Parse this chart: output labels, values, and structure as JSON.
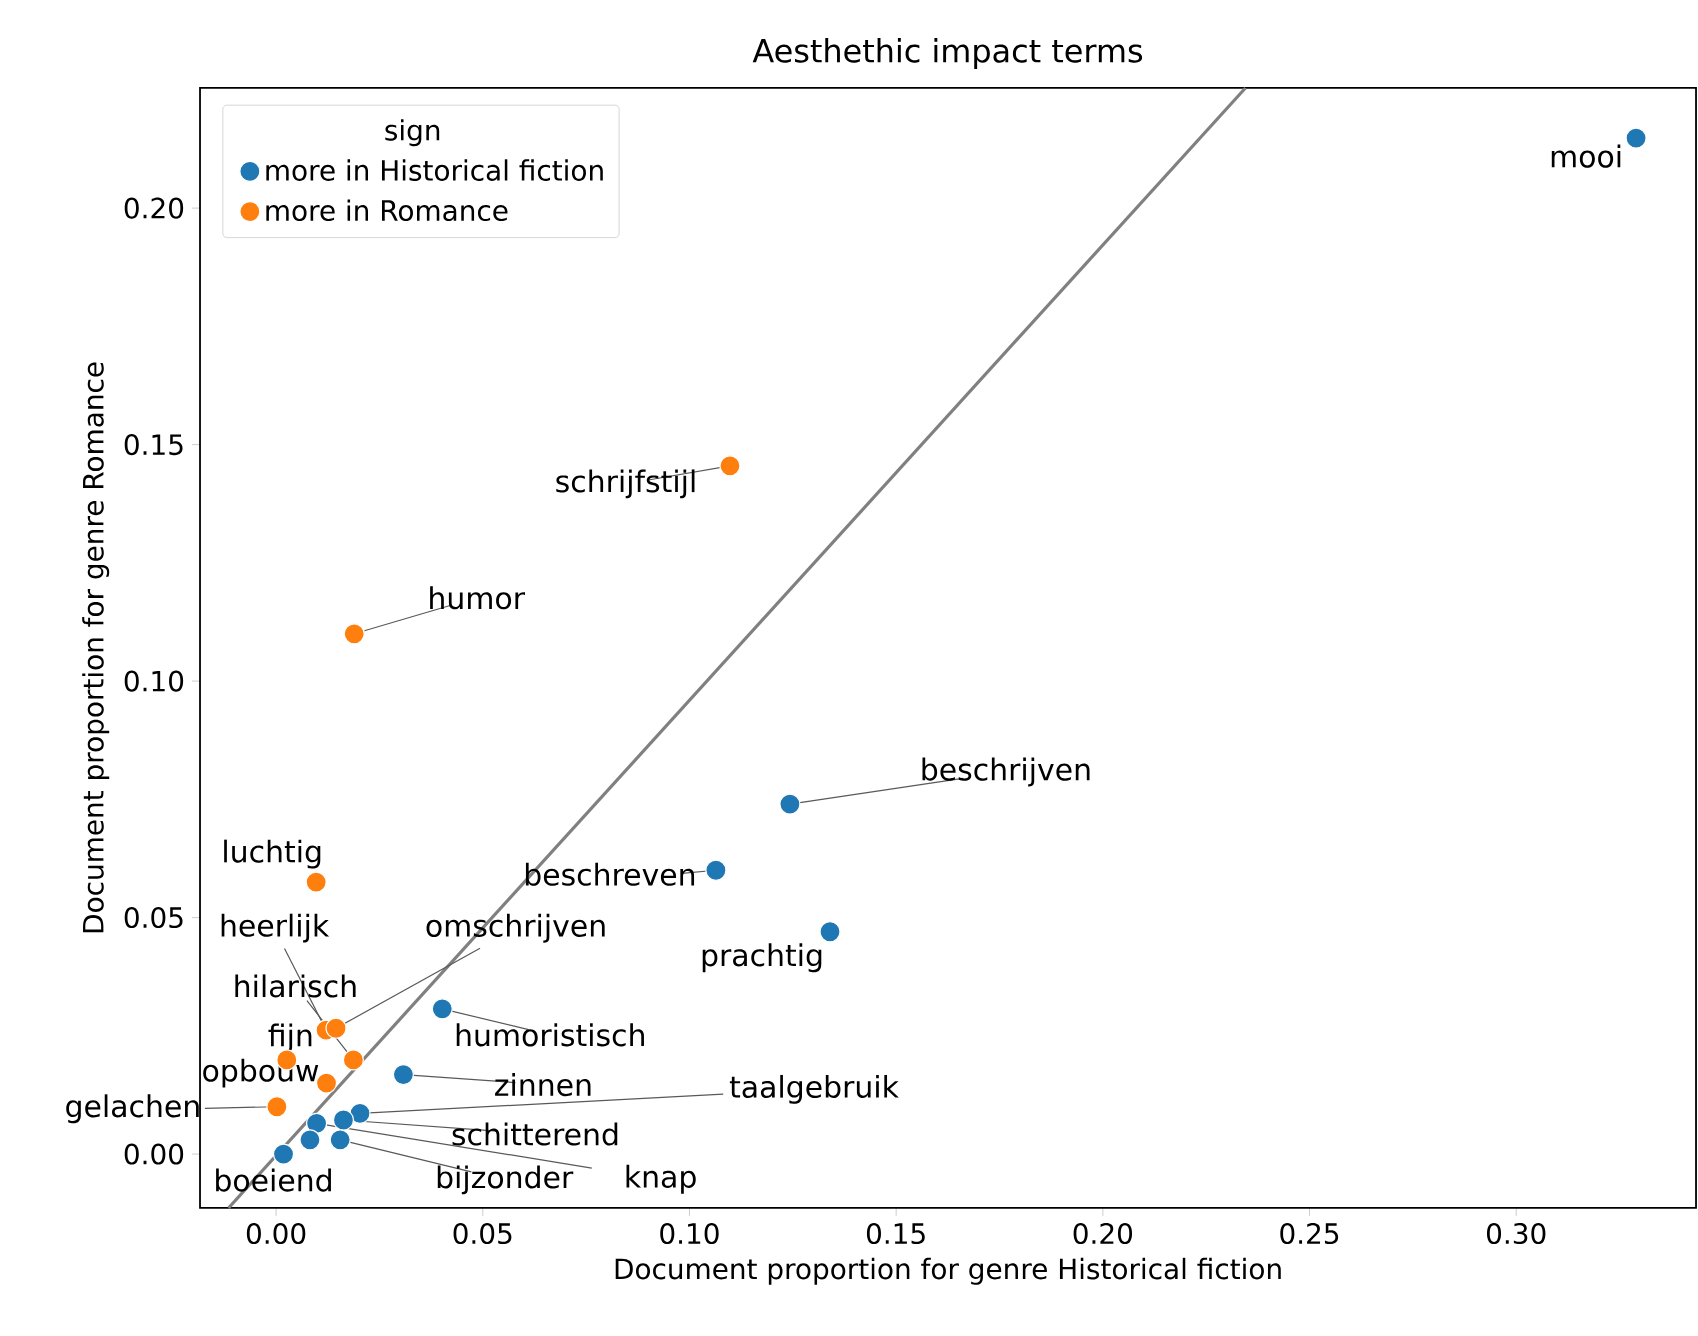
{
  "chart_data": {
    "type": "scatter",
    "title": "Aesthethic impact terms",
    "xlabel": "Document proportion for genre Historical fiction",
    "ylabel": "Document proportion for genre Romance",
    "legend_title": "sign",
    "legend": "top left",
    "xlim": [
      -0.0184,
      0.3435
    ],
    "ylim": [
      -0.0114,
      0.2254
    ],
    "xticks": [
      {
        "value": 0,
        "label": "0.00"
      },
      {
        "value": 0.05,
        "label": "0.05"
      },
      {
        "value": 0.1,
        "label": "0.10"
      },
      {
        "value": 0.15,
        "label": "0.15"
      },
      {
        "value": 0.2,
        "label": "0.20"
      },
      {
        "value": 0.25,
        "label": "0.25"
      },
      {
        "value": 0.3,
        "label": "0.30"
      }
    ],
    "yticks": [
      {
        "value": 0,
        "label": "0.00"
      },
      {
        "value": 0.05,
        "label": "0.05"
      },
      {
        "value": 0.1,
        "label": "0.10"
      },
      {
        "value": 0.15,
        "label": "0.15"
      },
      {
        "value": 0.2,
        "label": "0.20"
      }
    ],
    "series": [
      {
        "name": "more in Historical fiction",
        "color": "#1f77b4",
        "x": [
          0.329,
          0.1243,
          0.1064,
          0.134,
          0.0402,
          0.0308,
          0.0203,
          0.0163,
          0.0155,
          0.0018,
          0.0098,
          0.0082
        ],
        "values": [
          0.2148,
          0.074,
          0.06,
          0.047,
          0.0307,
          0.0168,
          0.0086,
          0.0072,
          0.003,
          0.0,
          0.0065,
          0.003
        ]
      },
      {
        "name": "more in Romance",
        "color": "#ff7f0e",
        "x": [
          0.0189,
          0.1098,
          0.0097,
          0.0121,
          0.0145,
          0.0187,
          0.0026,
          0.0122,
          0.0002
        ],
        "values": [
          0.11,
          0.1455,
          0.0575,
          0.0262,
          0.0266,
          0.0199,
          0.0199,
          0.015,
          0.01
        ]
      },
      {
        "type": "line",
        "color": "#808080",
        "x": [
          -0.0115,
          0.2345
        ],
        "values": [
          -0.0114,
          0.2254
        ]
      }
    ],
    "annotations": [
      {
        "text": "mooi",
        "x": 0.329,
        "y": 0.2148
      },
      {
        "text": "beschrijven",
        "x": 0.1243,
        "y": 0.074
      },
      {
        "text": "beschreven",
        "x": 0.1064,
        "y": 0.06
      },
      {
        "text": "prachtig",
        "x": 0.134,
        "y": 0.047
      },
      {
        "text": "humoristisch",
        "x": 0.0402,
        "y": 0.0307
      },
      {
        "text": "zinnen",
        "x": 0.0308,
        "y": 0.0168
      },
      {
        "text": "taalgebruik",
        "x": 0.0203,
        "y": 0.0086
      },
      {
        "text": "schitterend",
        "x": 0.0163,
        "y": 0.0072
      },
      {
        "text": "bijzonder",
        "x": 0.0155,
        "y": 0.003
      },
      {
        "text": "boeiend",
        "x": 0.0018,
        "y": 0.0
      },
      {
        "text": "knap",
        "x": 0.0098,
        "y": 0.0065
      },
      {
        "text": "gelachen",
        "x": 0.0002,
        "y": 0.01
      },
      {
        "text": "humor",
        "x": 0.0189,
        "y": 0.11
      },
      {
        "text": "schrijfstijl",
        "x": 0.1098,
        "y": 0.1455
      },
      {
        "text": "luchtig",
        "x": 0.0097,
        "y": 0.0575
      },
      {
        "text": "heerlijk",
        "x": 0.0121,
        "y": 0.0262
      },
      {
        "text": "omschrijven",
        "x": 0.0145,
        "y": 0.0266
      },
      {
        "text": "hilarisch",
        "x": 0.0187,
        "y": 0.0199
      },
      {
        "text": "fijn",
        "x": 0.0026,
        "y": 0.0199
      },
      {
        "text": "opbouw",
        "x": 0.0122,
        "y": 0.015
      }
    ]
  }
}
